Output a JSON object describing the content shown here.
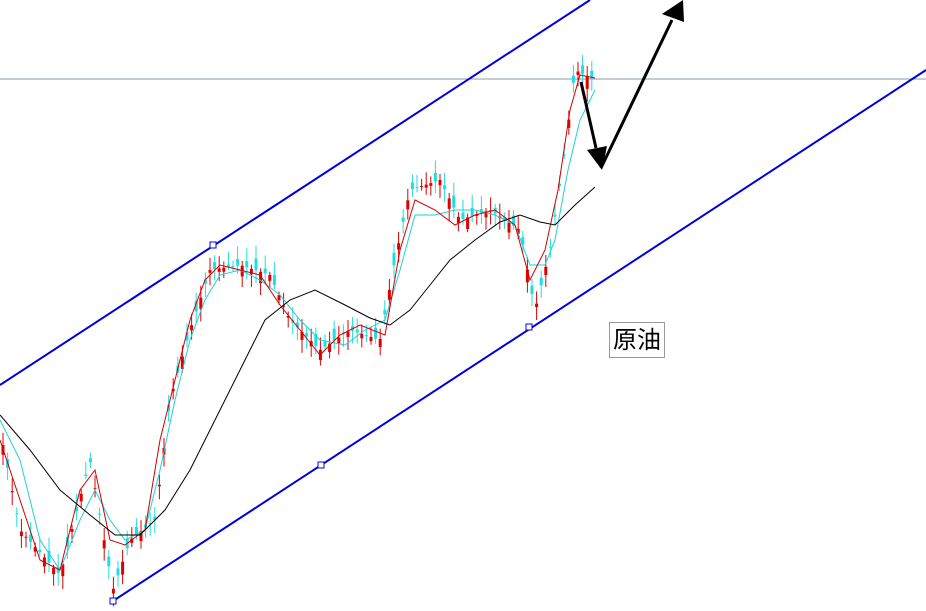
{
  "annotation": {
    "label": "原油"
  }
}
